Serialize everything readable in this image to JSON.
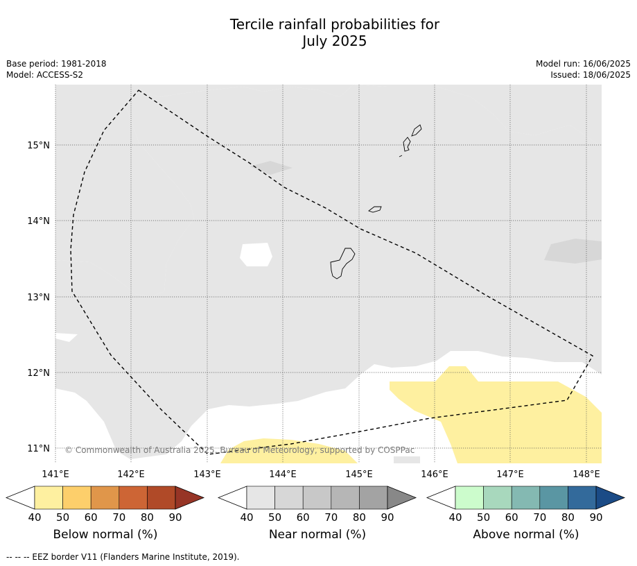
{
  "title_line1": "Tercile rainfall probabilities for",
  "title_line2": "July 2025",
  "base_period": "Base period: 1981-2018",
  "model": "Model: ACCESS-S2",
  "model_run": "Model run: 16/06/2025",
  "issued": "Issued: 18/06/2025",
  "copyright": "© Commonwealth of Australia 2025, Bureau of Meteorology, supported by COSPPac",
  "footnote": "--  --  -- EEZ border V11 (Flanders Marine Institute, 2019).",
  "lon_ticks": [
    "141°E",
    "142°E",
    "143°E",
    "144°E",
    "145°E",
    "146°E",
    "147°E",
    "148°E"
  ],
  "lat_ticks": [
    "15°N",
    "14°N",
    "13°N",
    "12°N",
    "11°N"
  ],
  "colorbars": [
    {
      "label": "Below normal (%)",
      "ticks": [
        "40",
        "50",
        "60",
        "70",
        "80",
        "90"
      ],
      "colors": [
        "#ffffff",
        "#fef0a0",
        "#fdcf6b",
        "#e0964a",
        "#cd6535",
        "#b04a28",
        "#973526"
      ]
    },
    {
      "label": "Near normal (%)",
      "ticks": [
        "40",
        "50",
        "60",
        "70",
        "80",
        "90"
      ],
      "colors": [
        "#ffffff",
        "#e6e6e6",
        "#d7d7d7",
        "#c8c8c8",
        "#b6b6b6",
        "#a3a3a3",
        "#888888"
      ]
    },
    {
      "label": "Above normal (%)",
      "ticks": [
        "40",
        "50",
        "60",
        "70",
        "80",
        "90"
      ],
      "colors": [
        "#ffffff",
        "#ccfccc",
        "#a8d8bd",
        "#84b9b2",
        "#5a96a3",
        "#336a9b",
        "#1b4b86"
      ]
    }
  ]
}
